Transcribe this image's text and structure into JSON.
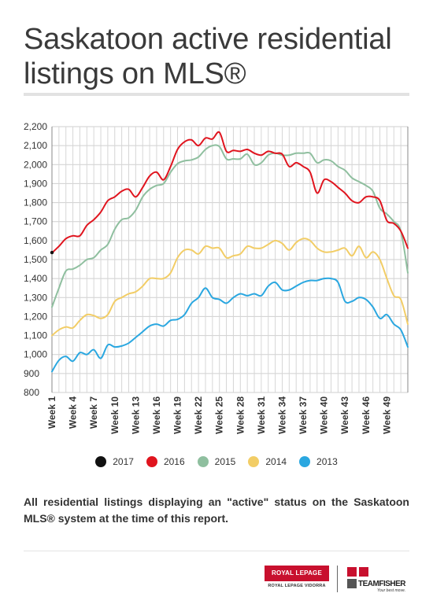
{
  "title": "Saskatoon active residential listings on MLS®",
  "note": "All residential listings displaying an \"active\" status on the Saskatoon MLS® system at the time of this report.",
  "logos": {
    "royal_lepage": "ROYAL LEPAGE",
    "royal_lepage_sub": "ROYAL LEPAGE VIDORRA",
    "teamfisher": "TEAMFISHER",
    "teamfisher_tag": "Your best move."
  },
  "chart_data": {
    "type": "line",
    "title": "",
    "xlabel": "",
    "ylabel": "",
    "ylim": [
      800,
      2200
    ],
    "yticks": [
      800,
      900,
      1000,
      1100,
      1200,
      1300,
      1400,
      1500,
      1600,
      1700,
      1800,
      1900,
      2000,
      2100,
      2200
    ],
    "ytick_labels": [
      "800",
      "900",
      "1,000",
      "1,100",
      "1,200",
      "1,300",
      "1,400",
      "1,500",
      "1,600",
      "1,700",
      "1,800",
      "1,900",
      "2,000",
      "2,100",
      "2,200"
    ],
    "xlim": [
      1,
      52
    ],
    "x_tick_weeks": [
      1,
      4,
      7,
      10,
      13,
      16,
      19,
      22,
      25,
      28,
      31,
      34,
      37,
      40,
      43,
      46,
      49
    ],
    "x_tick_labels": [
      "Week 1",
      "Week 4",
      "Week 7",
      "Week 10",
      "Week 13",
      "Week 16",
      "Week 19",
      "Week 22",
      "Week 25",
      "Week 28",
      "Week 31",
      "Week 34",
      "Week 37",
      "Week 40",
      "Week 43",
      "Week 46",
      "Week 49"
    ],
    "grid": true,
    "legend_position": "bottom",
    "series": [
      {
        "name": "2017",
        "color": "#111111",
        "points": [
          [
            1,
            1537
          ]
        ]
      },
      {
        "name": "2016",
        "color": "#e0141e",
        "points": [
          [
            1,
            1535
          ],
          [
            2,
            1570
          ],
          [
            3,
            1610
          ],
          [
            4,
            1625
          ],
          [
            5,
            1625
          ],
          [
            6,
            1680
          ],
          [
            7,
            1710
          ],
          [
            8,
            1750
          ],
          [
            9,
            1810
          ],
          [
            10,
            1830
          ],
          [
            11,
            1860
          ],
          [
            12,
            1870
          ],
          [
            13,
            1830
          ],
          [
            14,
            1880
          ],
          [
            15,
            1940
          ],
          [
            16,
            1960
          ],
          [
            17,
            1920
          ],
          [
            18,
            1990
          ],
          [
            19,
            2080
          ],
          [
            20,
            2120
          ],
          [
            21,
            2130
          ],
          [
            22,
            2100
          ],
          [
            23,
            2140
          ],
          [
            24,
            2135
          ],
          [
            25,
            2170
          ],
          [
            26,
            2070
          ],
          [
            27,
            2075
          ],
          [
            28,
            2070
          ],
          [
            29,
            2080
          ],
          [
            30,
            2060
          ],
          [
            31,
            2050
          ],
          [
            32,
            2070
          ],
          [
            33,
            2060
          ],
          [
            34,
            2055
          ],
          [
            35,
            1990
          ],
          [
            36,
            2010
          ],
          [
            37,
            1990
          ],
          [
            38,
            1960
          ],
          [
            39,
            1850
          ],
          [
            40,
            1920
          ],
          [
            41,
            1910
          ],
          [
            42,
            1880
          ],
          [
            43,
            1850
          ],
          [
            44,
            1810
          ],
          [
            45,
            1800
          ],
          [
            46,
            1830
          ],
          [
            47,
            1830
          ],
          [
            48,
            1810
          ],
          [
            49,
            1705
          ],
          [
            50,
            1690
          ],
          [
            51,
            1650
          ],
          [
            52,
            1560
          ]
        ]
      },
      {
        "name": "2015",
        "color": "#8fbf9f",
        "points": [
          [
            1,
            1250
          ],
          [
            2,
            1350
          ],
          [
            3,
            1440
          ],
          [
            4,
            1450
          ],
          [
            5,
            1470
          ],
          [
            6,
            1500
          ],
          [
            7,
            1510
          ],
          [
            8,
            1550
          ],
          [
            9,
            1580
          ],
          [
            10,
            1660
          ],
          [
            11,
            1710
          ],
          [
            12,
            1720
          ],
          [
            13,
            1760
          ],
          [
            14,
            1830
          ],
          [
            15,
            1870
          ],
          [
            16,
            1890
          ],
          [
            17,
            1900
          ],
          [
            18,
            1960
          ],
          [
            19,
            2005
          ],
          [
            20,
            2020
          ],
          [
            21,
            2025
          ],
          [
            22,
            2040
          ],
          [
            23,
            2080
          ],
          [
            24,
            2100
          ],
          [
            25,
            2095
          ],
          [
            26,
            2030
          ],
          [
            27,
            2030
          ],
          [
            28,
            2030
          ],
          [
            29,
            2055
          ],
          [
            30,
            2000
          ],
          [
            31,
            2010
          ],
          [
            32,
            2050
          ],
          [
            33,
            2060
          ],
          [
            34,
            2050
          ],
          [
            35,
            2050
          ],
          [
            36,
            2060
          ],
          [
            37,
            2060
          ],
          [
            38,
            2060
          ],
          [
            39,
            2010
          ],
          [
            40,
            2025
          ],
          [
            41,
            2020
          ],
          [
            42,
            1990
          ],
          [
            43,
            1970
          ],
          [
            44,
            1930
          ],
          [
            45,
            1910
          ],
          [
            46,
            1890
          ],
          [
            47,
            1860
          ],
          [
            48,
            1770
          ],
          [
            49,
            1740
          ],
          [
            50,
            1700
          ],
          [
            51,
            1650
          ],
          [
            52,
            1430
          ]
        ]
      },
      {
        "name": "2014",
        "color": "#f2cd66",
        "points": [
          [
            1,
            1100
          ],
          [
            2,
            1130
          ],
          [
            3,
            1145
          ],
          [
            4,
            1140
          ],
          [
            5,
            1180
          ],
          [
            6,
            1210
          ],
          [
            7,
            1205
          ],
          [
            8,
            1190
          ],
          [
            9,
            1210
          ],
          [
            10,
            1280
          ],
          [
            11,
            1300
          ],
          [
            12,
            1320
          ],
          [
            13,
            1330
          ],
          [
            14,
            1360
          ],
          [
            15,
            1400
          ],
          [
            16,
            1400
          ],
          [
            17,
            1400
          ],
          [
            18,
            1430
          ],
          [
            19,
            1510
          ],
          [
            20,
            1550
          ],
          [
            21,
            1550
          ],
          [
            22,
            1530
          ],
          [
            23,
            1570
          ],
          [
            24,
            1560
          ],
          [
            25,
            1560
          ],
          [
            26,
            1510
          ],
          [
            27,
            1520
          ],
          [
            28,
            1530
          ],
          [
            29,
            1570
          ],
          [
            30,
            1560
          ],
          [
            31,
            1560
          ],
          [
            32,
            1580
          ],
          [
            33,
            1600
          ],
          [
            34,
            1585
          ],
          [
            35,
            1550
          ],
          [
            36,
            1590
          ],
          [
            37,
            1610
          ],
          [
            38,
            1600
          ],
          [
            39,
            1560
          ],
          [
            40,
            1540
          ],
          [
            41,
            1540
          ],
          [
            42,
            1550
          ],
          [
            43,
            1560
          ],
          [
            44,
            1520
          ],
          [
            45,
            1570
          ],
          [
            46,
            1510
          ],
          [
            47,
            1540
          ],
          [
            48,
            1500
          ],
          [
            49,
            1400
          ],
          [
            50,
            1310
          ],
          [
            51,
            1290
          ],
          [
            52,
            1160
          ]
        ]
      },
      {
        "name": "2013",
        "color": "#2aa7e0",
        "points": [
          [
            1,
            910
          ],
          [
            2,
            970
          ],
          [
            3,
            990
          ],
          [
            4,
            965
          ],
          [
            5,
            1010
          ],
          [
            6,
            1000
          ],
          [
            7,
            1025
          ],
          [
            8,
            980
          ],
          [
            9,
            1050
          ],
          [
            10,
            1040
          ],
          [
            11,
            1045
          ],
          [
            12,
            1060
          ],
          [
            13,
            1090
          ],
          [
            14,
            1120
          ],
          [
            15,
            1150
          ],
          [
            16,
            1160
          ],
          [
            17,
            1150
          ],
          [
            18,
            1180
          ],
          [
            19,
            1185
          ],
          [
            20,
            1210
          ],
          [
            21,
            1270
          ],
          [
            22,
            1300
          ],
          [
            23,
            1350
          ],
          [
            24,
            1300
          ],
          [
            25,
            1290
          ],
          [
            26,
            1270
          ],
          [
            27,
            1300
          ],
          [
            28,
            1320
          ],
          [
            29,
            1310
          ],
          [
            30,
            1320
          ],
          [
            31,
            1310
          ],
          [
            32,
            1360
          ],
          [
            33,
            1380
          ],
          [
            34,
            1340
          ],
          [
            35,
            1340
          ],
          [
            36,
            1360
          ],
          [
            37,
            1380
          ],
          [
            38,
            1390
          ],
          [
            39,
            1390
          ],
          [
            40,
            1400
          ],
          [
            41,
            1400
          ],
          [
            42,
            1380
          ],
          [
            43,
            1280
          ],
          [
            44,
            1280
          ],
          [
            45,
            1300
          ],
          [
            46,
            1290
          ],
          [
            47,
            1250
          ],
          [
            48,
            1190
          ],
          [
            49,
            1210
          ],
          [
            50,
            1160
          ],
          [
            51,
            1130
          ],
          [
            52,
            1040
          ]
        ]
      }
    ]
  }
}
